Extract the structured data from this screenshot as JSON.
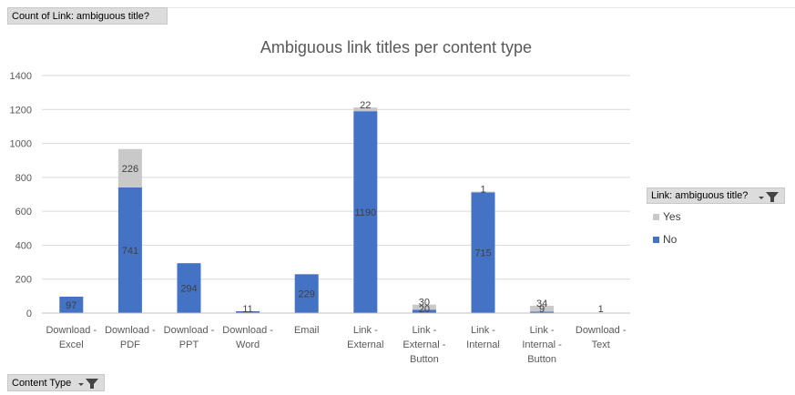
{
  "pivot": {
    "value_field": "Count of Link: ambiguous title?",
    "legend_field": "Link: ambiguous title?",
    "axis_field": "Content Type"
  },
  "colors": {
    "no": "#4472c4",
    "yes": "#c9c9c9",
    "grid": "#d9d9d9",
    "axis_text": "#595959"
  },
  "chart_data": {
    "type": "bar",
    "stacked": true,
    "title": "Ambiguous link titles per content type",
    "categories": [
      [
        "Download -",
        "Excel"
      ],
      [
        "Download -",
        "PDF"
      ],
      [
        "Download -",
        "PPT"
      ],
      [
        "Download -",
        "Word"
      ],
      [
        "Email"
      ],
      [
        "Link -",
        "External"
      ],
      [
        "Link -",
        "External -",
        "Button"
      ],
      [
        "Link -",
        "Internal"
      ],
      [
        "Link -",
        "Internal -",
        "Button"
      ],
      [
        "Download -",
        "Text"
      ]
    ],
    "series": [
      {
        "name": "No",
        "values": [
          97,
          741,
          294,
          11,
          229,
          1190,
          20,
          715,
          9,
          1
        ]
      },
      {
        "name": "Yes",
        "values": [
          null,
          226,
          null,
          null,
          null,
          22,
          30,
          1,
          34,
          null
        ]
      }
    ],
    "ylim": [
      0,
      1400
    ],
    "yticks": [
      0,
      200,
      400,
      600,
      800,
      1000,
      1200,
      1400
    ],
    "grid": true,
    "legend_position": "right",
    "legend": [
      "Yes",
      "No"
    ]
  }
}
